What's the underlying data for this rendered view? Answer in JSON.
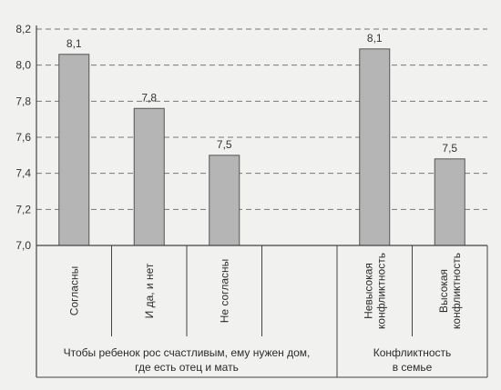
{
  "chart_data": {
    "type": "bar",
    "ylim": [
      7.0,
      8.2
    ],
    "yticks": [
      "7,0",
      "7,2",
      "7,4",
      "7,6",
      "7,8",
      "8,0",
      "8,2"
    ],
    "grid": "horizontal dashed",
    "bar_color": "#b5b5b5",
    "categories": [
      "Согласны",
      "И да, и нет",
      "Не согласны",
      "",
      "Невысокая\nконфликтность",
      "Высокая\nконфликтность"
    ],
    "values": [
      8.06,
      7.76,
      7.5,
      null,
      8.09,
      7.48
    ],
    "value_labels": [
      "8,1",
      "7,8",
      "7,5",
      "",
      "8,1",
      "7,5"
    ],
    "groups": [
      {
        "label": "Чтобы ребенок рос счастливым, ему нужен дом,\nгде есть отец и мать",
        "from": 0,
        "to": 3
      },
      {
        "label": "Конфликтность\nв семье",
        "from": 4,
        "to": 5
      }
    ]
  }
}
